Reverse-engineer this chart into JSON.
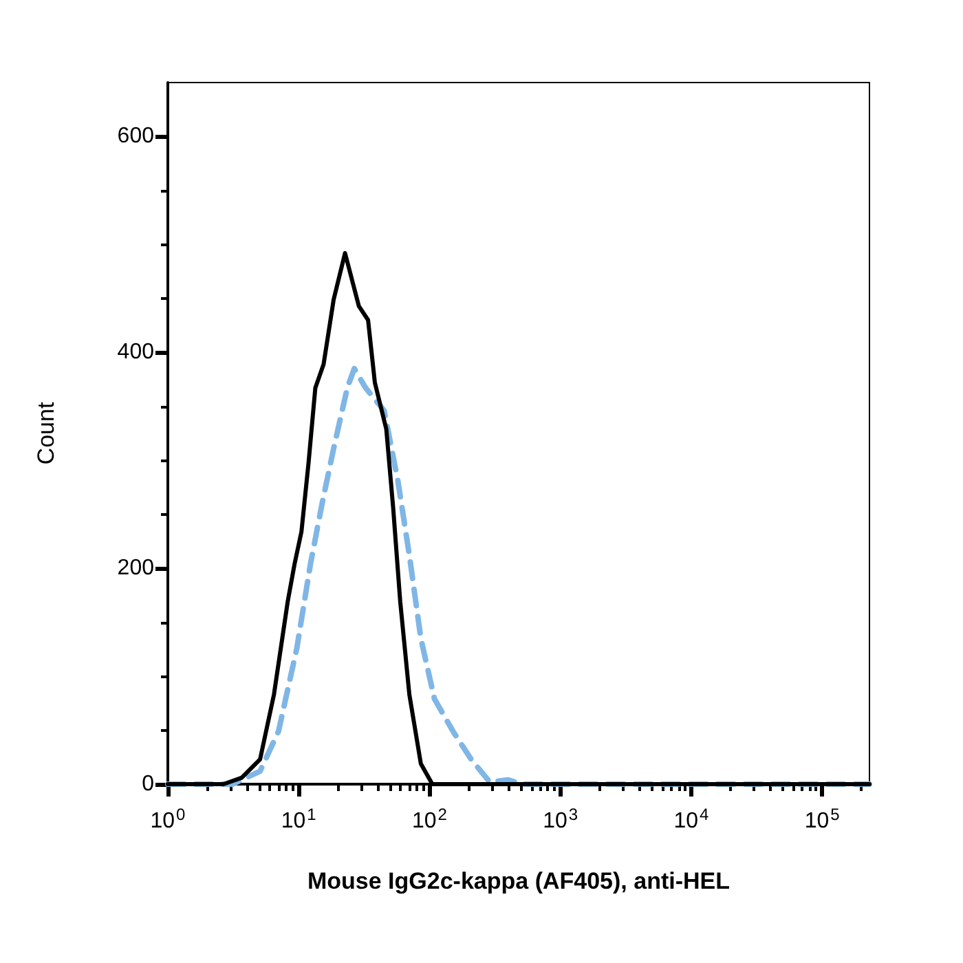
{
  "chart_data": {
    "type": "line",
    "xlabel": "Mouse IgG2c-kappa (AF405), anti-HEL",
    "ylabel": "Count",
    "log": "x",
    "grid": false,
    "marker": "none",
    "xlim": [
      1,
      230000
    ],
    "ylim": [
      0,
      650
    ],
    "xticks": [
      {
        "value": 1,
        "label": "10$^{0}$"
      },
      {
        "value": 2,
        "label": null
      },
      {
        "value": 3,
        "label": null
      },
      {
        "value": 4,
        "label": null
      },
      {
        "value": 5,
        "label": null
      },
      {
        "value": 6,
        "label": null
      },
      {
        "value": 7,
        "label": null
      },
      {
        "value": 8,
        "label": null
      },
      {
        "value": 9,
        "label": null
      },
      {
        "value": 10,
        "label": "10$^{1}$"
      },
      {
        "value": 20,
        "label": null
      },
      {
        "value": 30,
        "label": null
      },
      {
        "value": 40,
        "label": null
      },
      {
        "value": 50,
        "label": null
      },
      {
        "value": 60,
        "label": null
      },
      {
        "value": 70,
        "label": null
      },
      {
        "value": 80,
        "label": null
      },
      {
        "value": 90,
        "label": null
      },
      {
        "value": 100,
        "label": "10$^{2}$"
      },
      {
        "value": 200,
        "label": null
      },
      {
        "value": 300,
        "label": null
      },
      {
        "value": 400,
        "label": null
      },
      {
        "value": 500,
        "label": null
      },
      {
        "value": 600,
        "label": null
      },
      {
        "value": 700,
        "label": null
      },
      {
        "value": 800,
        "label": null
      },
      {
        "value": 900,
        "label": null
      },
      {
        "value": 1000,
        "label": "10$^{3}$"
      },
      {
        "value": 2000,
        "label": null
      },
      {
        "value": 3000,
        "label": null
      },
      {
        "value": 4000,
        "label": null
      },
      {
        "value": 5000,
        "label": null
      },
      {
        "value": 6000,
        "label": null
      },
      {
        "value": 7000,
        "label": null
      },
      {
        "value": 8000,
        "label": null
      },
      {
        "value": 9000,
        "label": null
      },
      {
        "value": 10000,
        "label": "10$^{4}$"
      },
      {
        "value": 20000,
        "label": null
      },
      {
        "value": 30000,
        "label": null
      },
      {
        "value": 40000,
        "label": null
      },
      {
        "value": 50000,
        "label": null
      },
      {
        "value": 60000,
        "label": null
      },
      {
        "value": 70000,
        "label": null
      },
      {
        "value": 80000,
        "label": null
      },
      {
        "value": 90000,
        "label": null
      },
      {
        "value": 100000,
        "label": "10$^{5}$"
      },
      {
        "value": 200000,
        "label": null
      }
    ],
    "yticks": [
      0,
      {
        "value": 50,
        "label": null
      },
      {
        "value": 100,
        "label": null
      },
      {
        "value": 150,
        "label": null
      },
      200,
      {
        "value": 250,
        "label": null
      },
      {
        "value": 300,
        "label": null
      },
      {
        "value": 350,
        "label": null
      },
      400,
      {
        "value": 450,
        "label": null
      },
      {
        "value": 500,
        "label": null
      },
      {
        "value": 550,
        "label": null
      },
      600
    ],
    "series": [
      {
        "color": "#000000",
        "line_style": "solid",
        "x": [
          1,
          2.66,
          3.67,
          5.07,
          6.47,
          8.24,
          9.3,
          10.5,
          11.9,
          13.4,
          15.5,
          18.5,
          22.6,
          28.8,
          33.9,
          38.2,
          46.7,
          52.8,
          59.7,
          70.1,
          85.8,
          105,
          230000
        ],
        "values": [
          0,
          0,
          6,
          23,
          83,
          169,
          204,
          234,
          298,
          367,
          389,
          449,
          492,
          443,
          430,
          372,
          329,
          255,
          169,
          83,
          19,
          0,
          0
        ]
      },
      {
        "color": "#7fb6e6",
        "line_style": "dashed",
        "x": [
          1,
          3.13,
          5.07,
          7.01,
          9.68,
          12.3,
          15.1,
          18.5,
          23.5,
          26.6,
          32.5,
          45,
          57.3,
          70.1,
          85.8,
          109,
          151,
          208,
          288,
          400,
          507,
          230000
        ],
        "values": [
          0,
          0,
          12,
          49,
          126,
          204,
          260,
          311,
          367,
          385,
          367,
          346,
          281,
          212,
          135,
          79,
          49,
          23,
          2,
          4,
          0,
          0
        ]
      }
    ]
  }
}
